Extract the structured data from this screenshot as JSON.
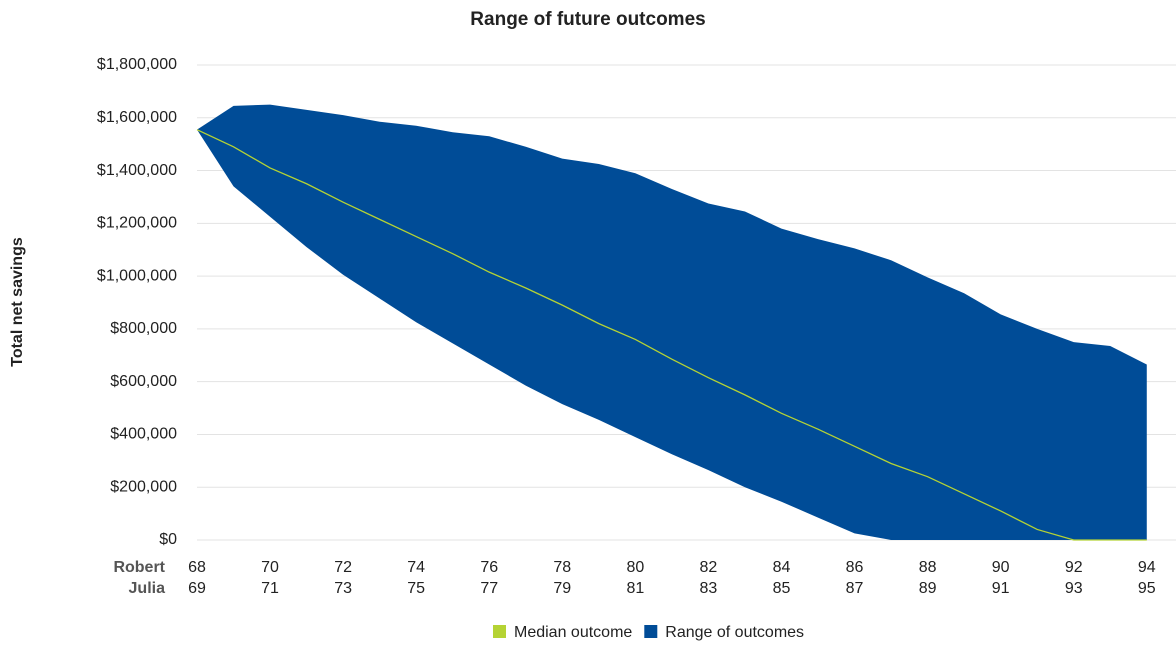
{
  "chart_data": {
    "type": "range_area",
    "title": "Range of future outcomes",
    "y_label": "Total net savings",
    "x": [
      68,
      69,
      70,
      71,
      72,
      73,
      74,
      75,
      76,
      77,
      78,
      79,
      80,
      81,
      82,
      83,
      84,
      85,
      86,
      87,
      88,
      89,
      90,
      91,
      92,
      93,
      94
    ],
    "xlim": [
      68,
      94.8
    ],
    "xticks": [
      68,
      70,
      72,
      74,
      76,
      78,
      80,
      82,
      84,
      86,
      88,
      90,
      92,
      94
    ],
    "x_tick_rows": [
      {
        "name": "Robert",
        "labels": [
          68,
          70,
          72,
          74,
          76,
          78,
          80,
          82,
          84,
          86,
          88,
          90,
          92,
          94
        ]
      },
      {
        "name": "Julia",
        "labels": [
          69,
          71,
          73,
          75,
          77,
          79,
          81,
          83,
          85,
          87,
          89,
          91,
          93,
          95
        ]
      }
    ],
    "ylim": [
      0,
      1800000
    ],
    "yticks": [
      {
        "value": 0,
        "label": "$0"
      },
      {
        "value": 200000,
        "label": "$200,000"
      },
      {
        "value": 400000,
        "label": "$400,000"
      },
      {
        "value": 600000,
        "label": "$600,000"
      },
      {
        "value": 800000,
        "label": "$800,000"
      },
      {
        "value": 1000000,
        "label": "$1,000,000"
      },
      {
        "value": 1200000,
        "label": "$1,200,000"
      },
      {
        "value": 1400000,
        "label": "$1,400,000"
      },
      {
        "value": 1600000,
        "label": "$1,600,000"
      },
      {
        "value": 1800000,
        "label": "$1,800,000"
      }
    ],
    "grid": true,
    "series": [
      {
        "name": "Median outcome",
        "color": "#b5d334",
        "values": [
          1555000,
          1490000,
          1410000,
          1350000,
          1280000,
          1215000,
          1150000,
          1085000,
          1015000,
          955000,
          890000,
          820000,
          760000,
          685000,
          615000,
          550000,
          480000,
          420000,
          355000,
          290000,
          240000,
          175000,
          110000,
          40000,
          0,
          0,
          0
        ]
      },
      {
        "name": "Range of outcomes",
        "color": "#004c97",
        "upper": [
          1555000,
          1645000,
          1650000,
          1630000,
          1610000,
          1585000,
          1570000,
          1545000,
          1530000,
          1490000,
          1445000,
          1425000,
          1390000,
          1330000,
          1275000,
          1245000,
          1180000,
          1140000,
          1105000,
          1060000,
          995000,
          935000,
          855000,
          800000,
          750000,
          735000,
          665000
        ],
        "lower": [
          1555000,
          1340000,
          1225000,
          1110000,
          1005000,
          915000,
          825000,
          745000,
          665000,
          585000,
          515000,
          455000,
          390000,
          325000,
          265000,
          200000,
          145000,
          85000,
          25000,
          0,
          0,
          0,
          0,
          0,
          0,
          0,
          0
        ]
      }
    ],
    "legend": "bottom"
  }
}
